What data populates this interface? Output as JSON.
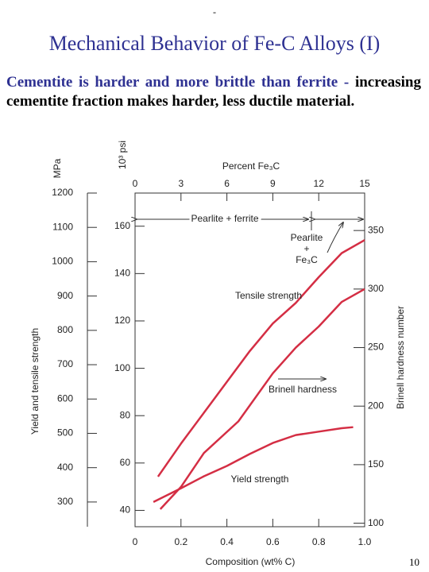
{
  "slide": {
    "dash": "-",
    "title": "Mechanical Behavior of Fe-C Alloys (I)",
    "lead": "Cementite is harder and more brittle than ferrite -",
    "text": " increasing cementite fraction makes harder, less ductile material.",
    "page_number": "10"
  },
  "chart_data": {
    "type": "line",
    "xlabel": "Composition (wt% C)",
    "ylabel": "Yield and tensile strength",
    "yunit": "MPa",
    "y2label": "Brinell hardness number",
    "xlim": [
      0,
      1
    ],
    "xticks": [
      0,
      0.2,
      0.4,
      0.6,
      0.8,
      {
        "value": 1,
        "label": "1.0"
      }
    ],
    "ylim": [
      228,
      1200
    ],
    "yticks": [
      300,
      400,
      500,
      600,
      700,
      800,
      900,
      1000,
      1100,
      1200
    ],
    "y2lim": [
      97,
      382
    ],
    "y2ticks": [
      100,
      150,
      200,
      250,
      300,
      350
    ],
    "psi_axis": {
      "label": "10³ psi",
      "lim": [
        33.1,
        174
      ],
      "ticks": [
        40,
        60,
        80,
        100,
        120,
        140,
        160
      ]
    },
    "top_axis": {
      "label": "Percent Fe₃C",
      "lim": [
        0,
        15
      ],
      "ticks": [
        0,
        3,
        6,
        9,
        12,
        15
      ]
    },
    "annotations": [
      "Pearlite + ferrite",
      "Pearlite",
      "+",
      "Fe₃C"
    ],
    "series": [
      {
        "name": "Tensile strength",
        "color": "#d42e44",
        "x": [
          0.1,
          0.2,
          0.3,
          0.4,
          0.5,
          0.6,
          0.7,
          0.8,
          0.9,
          1.0
        ],
        "values": [
          374,
          470,
          560,
          650,
          740,
          820,
          880,
          955,
          1025,
          1063
        ]
      },
      {
        "name": "Brinell hardness",
        "color": "#d42e44",
        "axis": "y2",
        "x": [
          0.11,
          0.2,
          0.3,
          0.45,
          0.6,
          0.7,
          0.8,
          0.9,
          1.0
        ],
        "values": [
          112,
          131,
          160,
          187,
          228,
          250,
          268,
          289,
          300
        ]
      },
      {
        "name": "Yield strength",
        "color": "#d42e44",
        "x": [
          0.08,
          0.2,
          0.3,
          0.4,
          0.5,
          0.6,
          0.7,
          0.8,
          0.9,
          0.95
        ],
        "values": [
          300,
          340,
          375,
          405,
          440,
          472,
          495,
          505,
          515,
          518
        ]
      }
    ]
  }
}
